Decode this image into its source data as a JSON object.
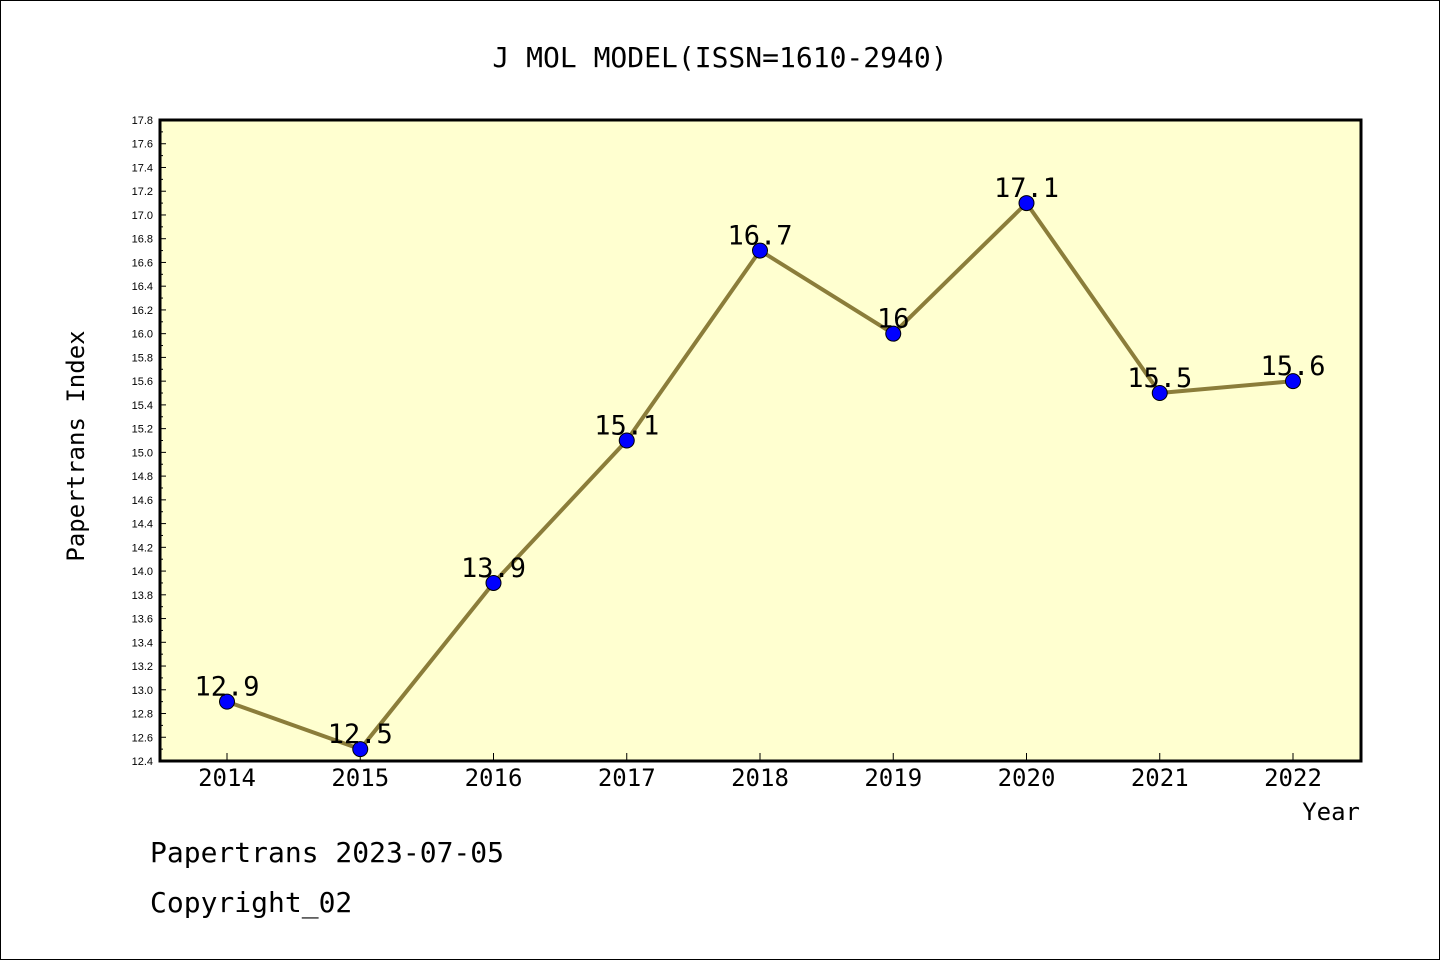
{
  "chart_data": {
    "type": "line",
    "title": "J MOL MODEL(ISSN=1610-2940)",
    "xlabel": "Year",
    "ylabel": "Papertrans Index",
    "categories": [
      "2014",
      "2015",
      "2016",
      "2017",
      "2018",
      "2019",
      "2020",
      "2021",
      "2022"
    ],
    "values": [
      12.9,
      12.5,
      13.9,
      15.1,
      16.7,
      16,
      17.1,
      15.5,
      15.6
    ],
    "data_labels": [
      "12.9",
      "12.5",
      "13.9",
      "15.1",
      "16.7",
      "16",
      "17.1",
      "15.5",
      "15.6"
    ],
    "ylim": [
      12.4,
      17.8
    ],
    "ytick_step": 0.2,
    "grid": false,
    "legend": "none",
    "colors": {
      "plot_background": "#ffffd0",
      "line": "#8b7d3a",
      "marker": "#0000ff"
    }
  },
  "footer": {
    "line1": "Papertrans 2023-07-05",
    "line2": "Copyright_02"
  }
}
